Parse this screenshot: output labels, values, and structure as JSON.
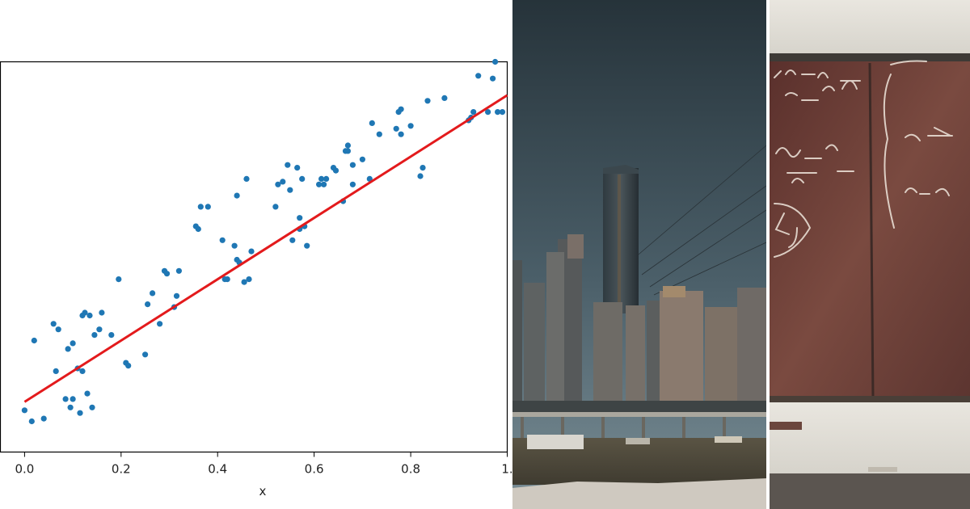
{
  "colors": {
    "points": "#1f77b4",
    "fit_line": "#e31a1c",
    "sky_top": "#2e3a40",
    "sky_bottom": "#5f7580",
    "water": "#4f4a3c",
    "chalkboard": "#6e3c34",
    "chalk": "#efe6dc"
  },
  "chart_data": {
    "type": "scatter",
    "xlabel": "x",
    "ylabel": "",
    "title": "",
    "xlim": [
      -0.05,
      1.0
    ],
    "ylim": [
      -0.1,
      1.3
    ],
    "xticks": [
      0.0,
      0.2,
      0.4,
      0.6,
      0.8,
      1.0
    ],
    "xtick_labels": [
      "0.0",
      "0.2",
      "0.4",
      "0.6",
      "0.8",
      "1."
    ],
    "grid": false,
    "legend": "none",
    "fit_line": {
      "slope": 1.1,
      "intercept": 0.08,
      "x_range": [
        0.0,
        1.0
      ]
    },
    "x": [
      0.0,
      0.015,
      0.02,
      0.04,
      0.06,
      0.065,
      0.07,
      0.085,
      0.09,
      0.095,
      0.1,
      0.1,
      0.11,
      0.115,
      0.12,
      0.12,
      0.125,
      0.13,
      0.135,
      0.14,
      0.145,
      0.155,
      0.16,
      0.18,
      0.195,
      0.21,
      0.215,
      0.25,
      0.255,
      0.265,
      0.28,
      0.29,
      0.295,
      0.31,
      0.315,
      0.32,
      0.355,
      0.36,
      0.365,
      0.38,
      0.41,
      0.415,
      0.42,
      0.435,
      0.44,
      0.44,
      0.445,
      0.455,
      0.46,
      0.465,
      0.47,
      0.52,
      0.525,
      0.535,
      0.545,
      0.55,
      0.555,
      0.565,
      0.57,
      0.57,
      0.575,
      0.58,
      0.585,
      0.61,
      0.615,
      0.62,
      0.625,
      0.64,
      0.645,
      0.66,
      0.665,
      0.67,
      0.67,
      0.68,
      0.68,
      0.7,
      0.715,
      0.72,
      0.735,
      0.77,
      0.775,
      0.78,
      0.78,
      0.8,
      0.82,
      0.825,
      0.835,
      0.87,
      0.92,
      0.925,
      0.93,
      0.94,
      0.96,
      0.97,
      0.975,
      0.98,
      0.99
    ],
    "y": [
      0.05,
      0.01,
      0.3,
      0.02,
      0.36,
      0.19,
      0.34,
      0.09,
      0.27,
      0.06,
      0.29,
      0.09,
      0.2,
      0.04,
      0.39,
      0.19,
      0.4,
      0.11,
      0.39,
      0.06,
      0.32,
      0.34,
      0.4,
      0.32,
      0.52,
      0.22,
      0.21,
      0.25,
      0.43,
      0.47,
      0.36,
      0.55,
      0.54,
      0.42,
      0.46,
      0.55,
      0.71,
      0.7,
      0.78,
      0.78,
      0.66,
      0.52,
      0.52,
      0.64,
      0.59,
      0.82,
      0.58,
      0.51,
      0.88,
      0.52,
      0.62,
      0.78,
      0.86,
      0.87,
      0.93,
      0.84,
      0.66,
      0.92,
      0.7,
      0.74,
      0.88,
      0.71,
      0.64,
      0.86,
      0.88,
      0.86,
      0.88,
      0.92,
      0.91,
      0.8,
      0.98,
      1.0,
      0.98,
      0.93,
      0.86,
      0.95,
      0.88,
      1.08,
      1.04,
      1.06,
      1.12,
      1.04,
      1.13,
      1.07,
      0.89,
      0.92,
      1.16,
      1.17,
      1.09,
      1.1,
      1.12,
      1.25,
      1.12,
      1.24,
      1.3,
      1.12,
      1.12
    ]
  }
}
